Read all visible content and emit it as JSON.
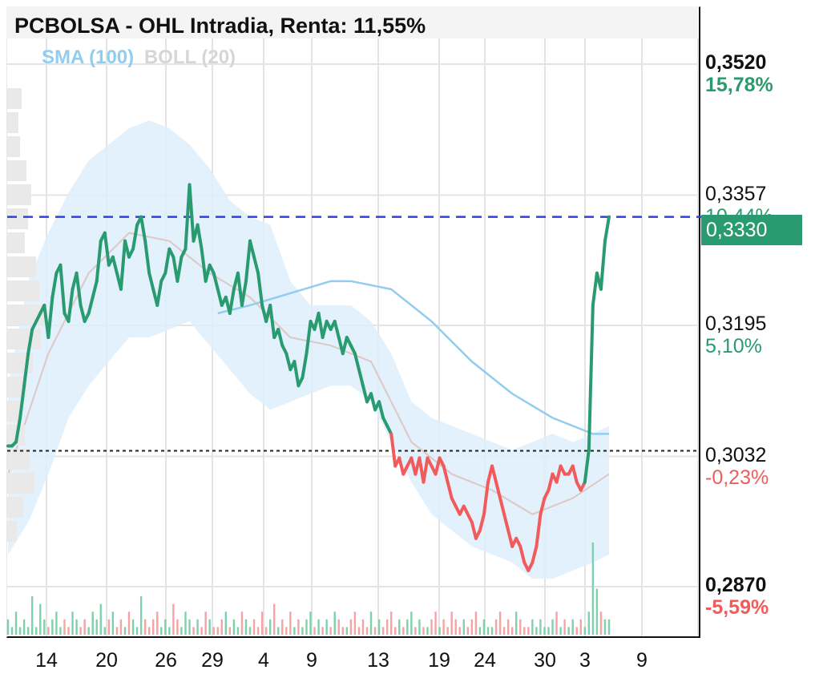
{
  "title": "PCBOLSA - OHL Intradia, Renta: 11,55%",
  "legend": {
    "sma": "SMA (100)",
    "boll": "BOLL (20)"
  },
  "colors": {
    "up": "#2a9b70",
    "down": "#f25b5b",
    "sma": "#92cdf0",
    "band_fill": "#ddeefb",
    "boll_mid": "#dcc8c4",
    "ref_line": "#3040e0"
  },
  "price_axis": [
    {
      "price": "0,3520",
      "pct": "15,78%",
      "color": "up",
      "bold": true
    },
    {
      "price": "0,3357",
      "pct": "10,44%",
      "color": "up",
      "bold": false
    },
    {
      "price": "0,3195",
      "pct": "5,10%",
      "color": "up",
      "bold": false
    },
    {
      "price": "0,3032",
      "pct": "-0,23%",
      "color": "down",
      "bold": false
    },
    {
      "price": "0,2870",
      "pct": "-5,59%",
      "color": "down",
      "bold": true
    }
  ],
  "current_price": "0,3330",
  "reference_price": 0.3039,
  "chart_data": {
    "type": "line",
    "title": "PCBOLSA - OHL Intradia, Renta: 11,55%",
    "x_tick_labels": [
      "14",
      "20",
      "26",
      "29",
      "4",
      "9",
      "13",
      "19",
      "24",
      "30",
      "3",
      "9"
    ],
    "ylim": [
      0.287,
      0.352
    ],
    "price_series": [
      [
        0,
        0.3045
      ],
      [
        1,
        0.3045
      ],
      [
        2,
        0.305
      ],
      [
        3,
        0.308
      ],
      [
        4,
        0.312
      ],
      [
        5,
        0.316
      ],
      [
        6,
        0.319
      ],
      [
        7,
        0.32
      ],
      [
        8,
        0.321
      ],
      [
        9,
        0.322
      ],
      [
        10,
        0.318
      ],
      [
        11,
        0.323
      ],
      [
        12,
        0.326
      ],
      [
        13,
        0.327
      ],
      [
        14,
        0.321
      ],
      [
        15,
        0.32
      ],
      [
        16,
        0.324
      ],
      [
        17,
        0.326
      ],
      [
        18,
        0.322
      ],
      [
        19,
        0.32
      ],
      [
        20,
        0.321
      ],
      [
        21,
        0.323
      ],
      [
        22,
        0.325
      ],
      [
        23,
        0.33
      ],
      [
        24,
        0.331
      ],
      [
        25,
        0.327
      ],
      [
        26,
        0.328
      ],
      [
        27,
        0.326
      ],
      [
        28,
        0.324
      ],
      [
        29,
        0.33
      ],
      [
        30,
        0.328
      ],
      [
        31,
        0.329
      ],
      [
        32,
        0.332
      ],
      [
        33,
        0.333
      ],
      [
        34,
        0.33
      ],
      [
        35,
        0.326
      ],
      [
        36,
        0.324
      ],
      [
        37,
        0.322
      ],
      [
        38,
        0.325
      ],
      [
        39,
        0.326
      ],
      [
        40,
        0.329
      ],
      [
        41,
        0.328
      ],
      [
        42,
        0.325
      ],
      [
        43,
        0.328
      ],
      [
        44,
        0.329
      ],
      [
        45,
        0.337
      ],
      [
        46,
        0.33
      ],
      [
        47,
        0.332
      ],
      [
        48,
        0.329
      ],
      [
        49,
        0.325
      ],
      [
        50,
        0.327
      ],
      [
        51,
        0.326
      ],
      [
        52,
        0.324
      ],
      [
        53,
        0.322
      ],
      [
        54,
        0.323
      ],
      [
        55,
        0.321
      ],
      [
        56,
        0.324
      ],
      [
        57,
        0.326
      ],
      [
        58,
        0.322
      ],
      [
        59,
        0.325
      ],
      [
        60,
        0.33
      ],
      [
        61,
        0.328
      ],
      [
        62,
        0.326
      ],
      [
        63,
        0.322
      ],
      [
        64,
        0.32
      ],
      [
        65,
        0.322
      ],
      [
        66,
        0.318
      ],
      [
        67,
        0.319
      ],
      [
        68,
        0.317
      ],
      [
        69,
        0.316
      ],
      [
        70,
        0.314
      ],
      [
        71,
        0.315
      ],
      [
        72,
        0.312
      ],
      [
        73,
        0.313
      ],
      [
        74,
        0.316
      ],
      [
        75,
        0.32
      ],
      [
        76,
        0.319
      ],
      [
        77,
        0.321
      ],
      [
        78,
        0.318
      ],
      [
        79,
        0.32
      ],
      [
        80,
        0.319
      ],
      [
        81,
        0.32
      ],
      [
        82,
        0.318
      ],
      [
        83,
        0.316
      ],
      [
        84,
        0.318
      ],
      [
        85,
        0.317
      ],
      [
        86,
        0.316
      ],
      [
        87,
        0.314
      ],
      [
        88,
        0.312
      ],
      [
        89,
        0.31
      ],
      [
        90,
        0.311
      ],
      [
        91,
        0.309
      ],
      [
        92,
        0.31
      ],
      [
        93,
        0.308
      ],
      [
        94,
        0.307
      ],
      [
        95,
        0.306
      ],
      [
        96,
        0.302
      ],
      [
        97,
        0.303
      ],
      [
        98,
        0.301
      ],
      [
        99,
        0.302
      ],
      [
        100,
        0.303
      ],
      [
        101,
        0.301
      ],
      [
        102,
        0.303
      ],
      [
        103,
        0.3
      ],
      [
        104,
        0.303
      ],
      [
        105,
        0.302
      ],
      [
        106,
        0.301
      ],
      [
        107,
        0.303
      ],
      [
        108,
        0.302
      ],
      [
        109,
        0.3
      ],
      [
        110,
        0.298
      ],
      [
        111,
        0.297
      ],
      [
        112,
        0.296
      ],
      [
        113,
        0.297
      ],
      [
        114,
        0.296
      ],
      [
        115,
        0.295
      ],
      [
        116,
        0.293
      ],
      [
        117,
        0.294
      ],
      [
        118,
        0.296
      ],
      [
        119,
        0.3
      ],
      [
        120,
        0.302
      ],
      [
        121,
        0.3
      ],
      [
        122,
        0.298
      ],
      [
        123,
        0.296
      ],
      [
        124,
        0.294
      ],
      [
        125,
        0.292
      ],
      [
        126,
        0.293
      ],
      [
        127,
        0.292
      ],
      [
        128,
        0.29
      ],
      [
        129,
        0.289
      ],
      [
        130,
        0.29
      ],
      [
        131,
        0.292
      ],
      [
        132,
        0.296
      ],
      [
        133,
        0.298
      ],
      [
        134,
        0.299
      ],
      [
        135,
        0.301
      ],
      [
        136,
        0.3
      ],
      [
        137,
        0.302
      ],
      [
        138,
        0.301
      ],
      [
        139,
        0.301
      ],
      [
        140,
        0.302
      ],
      [
        141,
        0.3
      ],
      [
        142,
        0.299
      ],
      [
        143,
        0.3
      ],
      [
        144,
        0.304
      ],
      [
        145,
        0.322
      ],
      [
        146,
        0.326
      ],
      [
        147,
        0.324
      ],
      [
        148,
        0.33
      ],
      [
        149,
        0.333
      ]
    ],
    "sma_100": [
      [
        52,
        0.321
      ],
      [
        60,
        0.322
      ],
      [
        70,
        0.3235
      ],
      [
        80,
        0.325
      ],
      [
        85,
        0.325
      ],
      [
        95,
        0.324
      ],
      [
        105,
        0.32
      ],
      [
        115,
        0.315
      ],
      [
        125,
        0.311
      ],
      [
        135,
        0.308
      ],
      [
        145,
        0.306
      ],
      [
        149,
        0.306
      ]
    ],
    "boll_upper": [
      [
        0,
        0.312
      ],
      [
        5,
        0.325
      ],
      [
        10,
        0.331
      ],
      [
        15,
        0.336
      ],
      [
        20,
        0.34
      ],
      [
        25,
        0.342
      ],
      [
        30,
        0.344
      ],
      [
        35,
        0.345
      ],
      [
        40,
        0.344
      ],
      [
        45,
        0.342
      ],
      [
        50,
        0.339
      ],
      [
        55,
        0.335
      ],
      [
        60,
        0.333
      ],
      [
        65,
        0.332
      ],
      [
        70,
        0.325
      ],
      [
        75,
        0.322
      ],
      [
        80,
        0.322
      ],
      [
        85,
        0.322
      ],
      [
        90,
        0.32
      ],
      [
        95,
        0.316
      ],
      [
        100,
        0.31
      ],
      [
        105,
        0.308
      ],
      [
        110,
        0.307
      ],
      [
        115,
        0.306
      ],
      [
        120,
        0.305
      ],
      [
        125,
        0.304
      ],
      [
        130,
        0.305
      ],
      [
        135,
        0.306
      ],
      [
        140,
        0.305
      ],
      [
        145,
        0.306
      ],
      [
        149,
        0.307
      ]
    ],
    "boll_lower": [
      [
        0,
        0.291
      ],
      [
        5,
        0.295
      ],
      [
        10,
        0.301
      ],
      [
        15,
        0.308
      ],
      [
        20,
        0.312
      ],
      [
        25,
        0.315
      ],
      [
        30,
        0.318
      ],
      [
        35,
        0.318
      ],
      [
        40,
        0.319
      ],
      [
        45,
        0.32
      ],
      [
        50,
        0.317
      ],
      [
        55,
        0.314
      ],
      [
        60,
        0.311
      ],
      [
        65,
        0.309
      ],
      [
        70,
        0.31
      ],
      [
        75,
        0.311
      ],
      [
        80,
        0.312
      ],
      [
        85,
        0.312
      ],
      [
        90,
        0.31
      ],
      [
        95,
        0.305
      ],
      [
        100,
        0.3
      ],
      [
        105,
        0.296
      ],
      [
        110,
        0.294
      ],
      [
        115,
        0.292
      ],
      [
        120,
        0.291
      ],
      [
        125,
        0.29
      ],
      [
        130,
        0.288
      ],
      [
        135,
        0.288
      ],
      [
        140,
        0.289
      ],
      [
        145,
        0.29
      ],
      [
        149,
        0.291
      ]
    ],
    "boll_middle": [
      [
        0,
        0.301
      ],
      [
        10,
        0.316
      ],
      [
        20,
        0.326
      ],
      [
        30,
        0.331
      ],
      [
        40,
        0.33
      ],
      [
        50,
        0.326
      ],
      [
        60,
        0.323
      ],
      [
        70,
        0.318
      ],
      [
        80,
        0.317
      ],
      [
        90,
        0.315
      ],
      [
        100,
        0.305
      ],
      [
        110,
        0.301
      ],
      [
        120,
        0.299
      ],
      [
        130,
        0.296
      ],
      [
        140,
        0.298
      ],
      [
        149,
        0.301
      ]
    ],
    "volume": [
      2,
      1,
      3,
      1,
      2,
      1,
      5,
      1,
      4,
      2,
      1,
      2,
      3,
      1,
      2,
      1,
      3,
      2,
      1,
      2,
      1,
      3,
      2,
      4,
      1,
      2,
      3,
      1,
      2,
      1,
      3,
      2,
      1,
      5,
      2,
      1,
      2,
      3,
      1,
      2,
      1,
      4,
      2,
      1,
      3,
      2,
      1,
      2,
      1,
      3,
      2,
      1,
      1,
      2,
      3,
      1,
      2,
      1,
      3,
      2,
      1,
      2,
      1,
      3,
      1,
      2,
      4,
      1,
      2,
      1,
      3,
      1,
      2,
      1,
      2,
      3,
      1,
      2,
      1,
      2,
      1,
      3,
      2,
      1,
      1,
      2,
      3,
      1,
      2,
      1,
      3,
      1,
      2,
      1,
      2,
      3,
      1,
      2,
      1,
      2,
      3,
      1,
      2,
      1,
      1,
      2,
      3,
      1,
      2,
      1,
      3,
      2,
      1,
      2,
      1,
      2,
      3,
      1,
      2,
      1,
      1,
      2,
      3,
      1,
      2,
      1,
      3,
      2,
      1,
      1,
      2,
      1,
      2,
      1,
      1,
      2,
      3,
      1,
      2,
      1,
      2,
      1,
      2,
      1,
      3,
      12,
      6,
      3,
      2,
      2
    ]
  }
}
